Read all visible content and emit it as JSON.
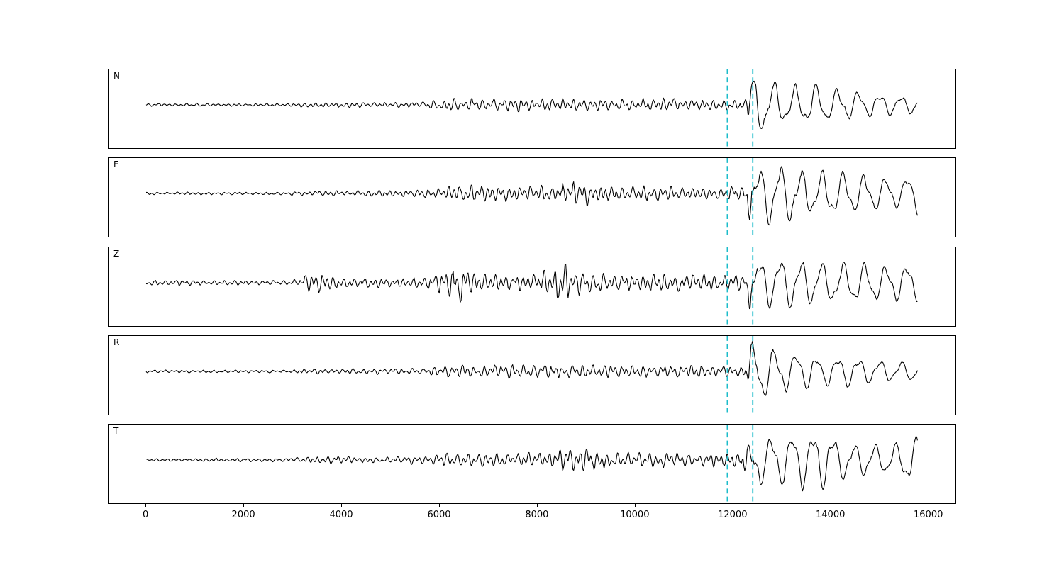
{
  "figure": {
    "background": "#ffffff",
    "frame_color": "#000000",
    "trace_color": "#000000",
    "pick_line_color": "#1cbcca"
  },
  "chart_data": {
    "type": "line",
    "title": "",
    "xlabel": "",
    "ylabel": "",
    "grid": false,
    "legend": "none",
    "x_range": [
      -770,
      16570
    ],
    "x_ticks": [
      0,
      2000,
      4000,
      6000,
      8000,
      10000,
      12000,
      14000,
      16000
    ],
    "x_tick_labels": [
      "0",
      "2000",
      "4000",
      "6000",
      "8000",
      "10000",
      "12000",
      "14000",
      "16000"
    ],
    "pick_lines": [
      {
        "x": 11900,
        "style": "dashed"
      },
      {
        "x": 12420,
        "style": "dashed"
      }
    ],
    "subplots": [
      {
        "label": "N",
        "seed": 3,
        "arrival_x": 12280,
        "signal_start": 0,
        "signal_end": 15800,
        "envelope": [
          [
            0,
            2.5
          ],
          [
            3000,
            2.5
          ],
          [
            3200,
            4
          ],
          [
            3400,
            6
          ],
          [
            3600,
            4
          ],
          [
            5600,
            4.5
          ],
          [
            6000,
            9
          ],
          [
            6400,
            11
          ],
          [
            7200,
            10
          ],
          [
            8000,
            12
          ],
          [
            8600,
            10
          ],
          [
            9300,
            11
          ],
          [
            10000,
            10
          ],
          [
            10700,
            11
          ],
          [
            11500,
            9
          ],
          [
            12100,
            9
          ],
          [
            12250,
            12
          ],
          [
            12320,
            34
          ],
          [
            12400,
            52
          ],
          [
            12550,
            46
          ],
          [
            12800,
            32
          ],
          [
            13200,
            26
          ],
          [
            13600,
            30
          ],
          [
            14000,
            24
          ],
          [
            14500,
            20
          ],
          [
            15000,
            16
          ],
          [
            15400,
            13
          ],
          [
            15700,
            13
          ],
          [
            15800,
            24
          ]
        ]
      },
      {
        "label": "E",
        "seed": 7,
        "arrival_x": 12300,
        "signal_start": 0,
        "signal_end": 15800,
        "envelope": [
          [
            0,
            2.5
          ],
          [
            2900,
            2.5
          ],
          [
            3200,
            4
          ],
          [
            4200,
            5
          ],
          [
            5600,
            6
          ],
          [
            6000,
            11
          ],
          [
            6400,
            14
          ],
          [
            7000,
            15
          ],
          [
            7600,
            13
          ],
          [
            8200,
            13
          ],
          [
            8600,
            20
          ],
          [
            9000,
            21
          ],
          [
            9300,
            16
          ],
          [
            9700,
            12
          ],
          [
            10400,
            13
          ],
          [
            11000,
            12
          ],
          [
            11800,
            11
          ],
          [
            12200,
            12
          ],
          [
            12320,
            32
          ],
          [
            12430,
            50
          ],
          [
            12600,
            42
          ],
          [
            13000,
            44
          ],
          [
            13300,
            36
          ],
          [
            13700,
            30
          ],
          [
            14100,
            32
          ],
          [
            14600,
            26
          ],
          [
            15100,
            22
          ],
          [
            15500,
            20
          ],
          [
            15800,
            30
          ]
        ]
      },
      {
        "label": "Z",
        "seed": 13,
        "arrival_x": 12300,
        "signal_start": 0,
        "signal_end": 15800,
        "envelope": [
          [
            0,
            3.5
          ],
          [
            500,
            6
          ],
          [
            900,
            4.5
          ],
          [
            1500,
            4
          ],
          [
            2600,
            4
          ],
          [
            3100,
            5
          ],
          [
            3300,
            17
          ],
          [
            3600,
            18
          ],
          [
            3900,
            10
          ],
          [
            4400,
            8
          ],
          [
            5100,
            9
          ],
          [
            5700,
            10
          ],
          [
            6050,
            22
          ],
          [
            6250,
            32
          ],
          [
            6500,
            26
          ],
          [
            6800,
            15
          ],
          [
            7400,
            13
          ],
          [
            8000,
            14
          ],
          [
            8350,
            30
          ],
          [
            8600,
            34
          ],
          [
            8800,
            20
          ],
          [
            9200,
            16
          ],
          [
            9800,
            15
          ],
          [
            10500,
            17
          ],
          [
            11200,
            14
          ],
          [
            11900,
            14
          ],
          [
            12250,
            15
          ],
          [
            12350,
            36
          ],
          [
            12450,
            42
          ],
          [
            12700,
            36
          ],
          [
            13100,
            34
          ],
          [
            13600,
            32
          ],
          [
            14100,
            28
          ],
          [
            14700,
            27
          ],
          [
            15200,
            25
          ],
          [
            15800,
            28
          ]
        ]
      },
      {
        "label": "R",
        "seed": 21,
        "arrival_x": 12260,
        "signal_start": 0,
        "signal_end": 15800,
        "envelope": [
          [
            0,
            2.5
          ],
          [
            3000,
            2.5
          ],
          [
            3200,
            4.5
          ],
          [
            5600,
            4.5
          ],
          [
            6000,
            10
          ],
          [
            6600,
            11
          ],
          [
            7400,
            12
          ],
          [
            8100,
            12
          ],
          [
            8800,
            11
          ],
          [
            9500,
            11
          ],
          [
            10300,
            11
          ],
          [
            11100,
            10
          ],
          [
            11900,
            9
          ],
          [
            12200,
            10
          ],
          [
            12300,
            30
          ],
          [
            12380,
            50
          ],
          [
            12550,
            44
          ],
          [
            12850,
            32
          ],
          [
            13300,
            27
          ],
          [
            13800,
            24
          ],
          [
            14300,
            21
          ],
          [
            14900,
            17
          ],
          [
            15400,
            13
          ],
          [
            15700,
            14
          ],
          [
            15800,
            22
          ]
        ]
      },
      {
        "label": "T",
        "seed": 29,
        "arrival_x": 12300,
        "signal_start": 0,
        "signal_end": 15800,
        "envelope": [
          [
            0,
            2.5
          ],
          [
            2800,
            3
          ],
          [
            3300,
            5
          ],
          [
            3800,
            7
          ],
          [
            4300,
            6
          ],
          [
            5000,
            5
          ],
          [
            5700,
            7
          ],
          [
            6100,
            11
          ],
          [
            6700,
            12
          ],
          [
            7400,
            11
          ],
          [
            8100,
            12
          ],
          [
            8500,
            20
          ],
          [
            9000,
            22
          ],
          [
            9300,
            15
          ],
          [
            9800,
            12
          ],
          [
            10600,
            12
          ],
          [
            11400,
            11
          ],
          [
            12100,
            12
          ],
          [
            12300,
            30
          ],
          [
            12420,
            48
          ],
          [
            12700,
            32
          ],
          [
            13100,
            36
          ],
          [
            13500,
            42
          ],
          [
            13800,
            44
          ],
          [
            14100,
            34
          ],
          [
            14500,
            24
          ],
          [
            15000,
            22
          ],
          [
            15400,
            25
          ],
          [
            15700,
            36
          ],
          [
            15800,
            28
          ]
        ]
      }
    ]
  }
}
